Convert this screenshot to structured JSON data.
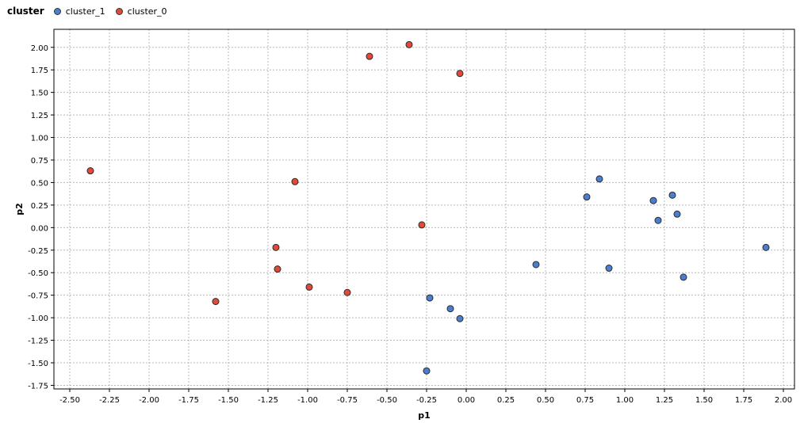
{
  "legend": {
    "title": "cluster",
    "items": [
      {
        "name": "cluster_1",
        "color": "#4a7fd0"
      },
      {
        "name": "cluster_0",
        "color": "#e14a38"
      }
    ]
  },
  "chart_data": {
    "type": "scatter",
    "title": "",
    "xlabel": "p1",
    "ylabel": "p2",
    "xlim": [
      -2.6,
      2.07
    ],
    "ylim": [
      -1.79,
      2.2
    ],
    "grid": true,
    "legend_position": "top-left",
    "xticks": [
      "-2.50",
      "-2.25",
      "-2.00",
      "-1.75",
      "-1.50",
      "-1.25",
      "-1.00",
      "-0.75",
      "-0.50",
      "-0.25",
      "0.00",
      "0.25",
      "0.50",
      "0.75",
      "1.00",
      "1.25",
      "1.50",
      "1.75",
      "2.00"
    ],
    "yticks": [
      "-1.75",
      "-1.50",
      "-1.25",
      "-1.00",
      "-0.75",
      "-0.50",
      "-0.25",
      "0.00",
      "0.25",
      "0.50",
      "0.75",
      "1.00",
      "1.25",
      "1.50",
      "1.75",
      "2.00"
    ],
    "series": [
      {
        "name": "cluster_1",
        "color": "#4a7fd0",
        "points": [
          [
            0.84,
            0.54
          ],
          [
            0.76,
            0.34
          ],
          [
            1.3,
            0.36
          ],
          [
            1.18,
            0.3
          ],
          [
            1.33,
            0.15
          ],
          [
            1.21,
            0.08
          ],
          [
            1.89,
            -0.22
          ],
          [
            0.44,
            -0.41
          ],
          [
            0.9,
            -0.45
          ],
          [
            1.37,
            -0.55
          ],
          [
            -0.23,
            -0.78
          ],
          [
            -0.1,
            -0.9
          ],
          [
            -0.04,
            -1.01
          ],
          [
            -0.25,
            -1.59
          ]
        ]
      },
      {
        "name": "cluster_0",
        "color": "#e14a38",
        "points": [
          [
            -0.36,
            2.03
          ],
          [
            -0.61,
            1.9
          ],
          [
            -0.04,
            1.71
          ],
          [
            -2.37,
            0.63
          ],
          [
            -1.08,
            0.51
          ],
          [
            -0.28,
            0.03
          ],
          [
            -1.2,
            -0.22
          ],
          [
            -1.19,
            -0.46
          ],
          [
            -0.99,
            -0.66
          ],
          [
            -0.75,
            -0.72
          ],
          [
            -1.58,
            -0.82
          ]
        ]
      }
    ]
  }
}
